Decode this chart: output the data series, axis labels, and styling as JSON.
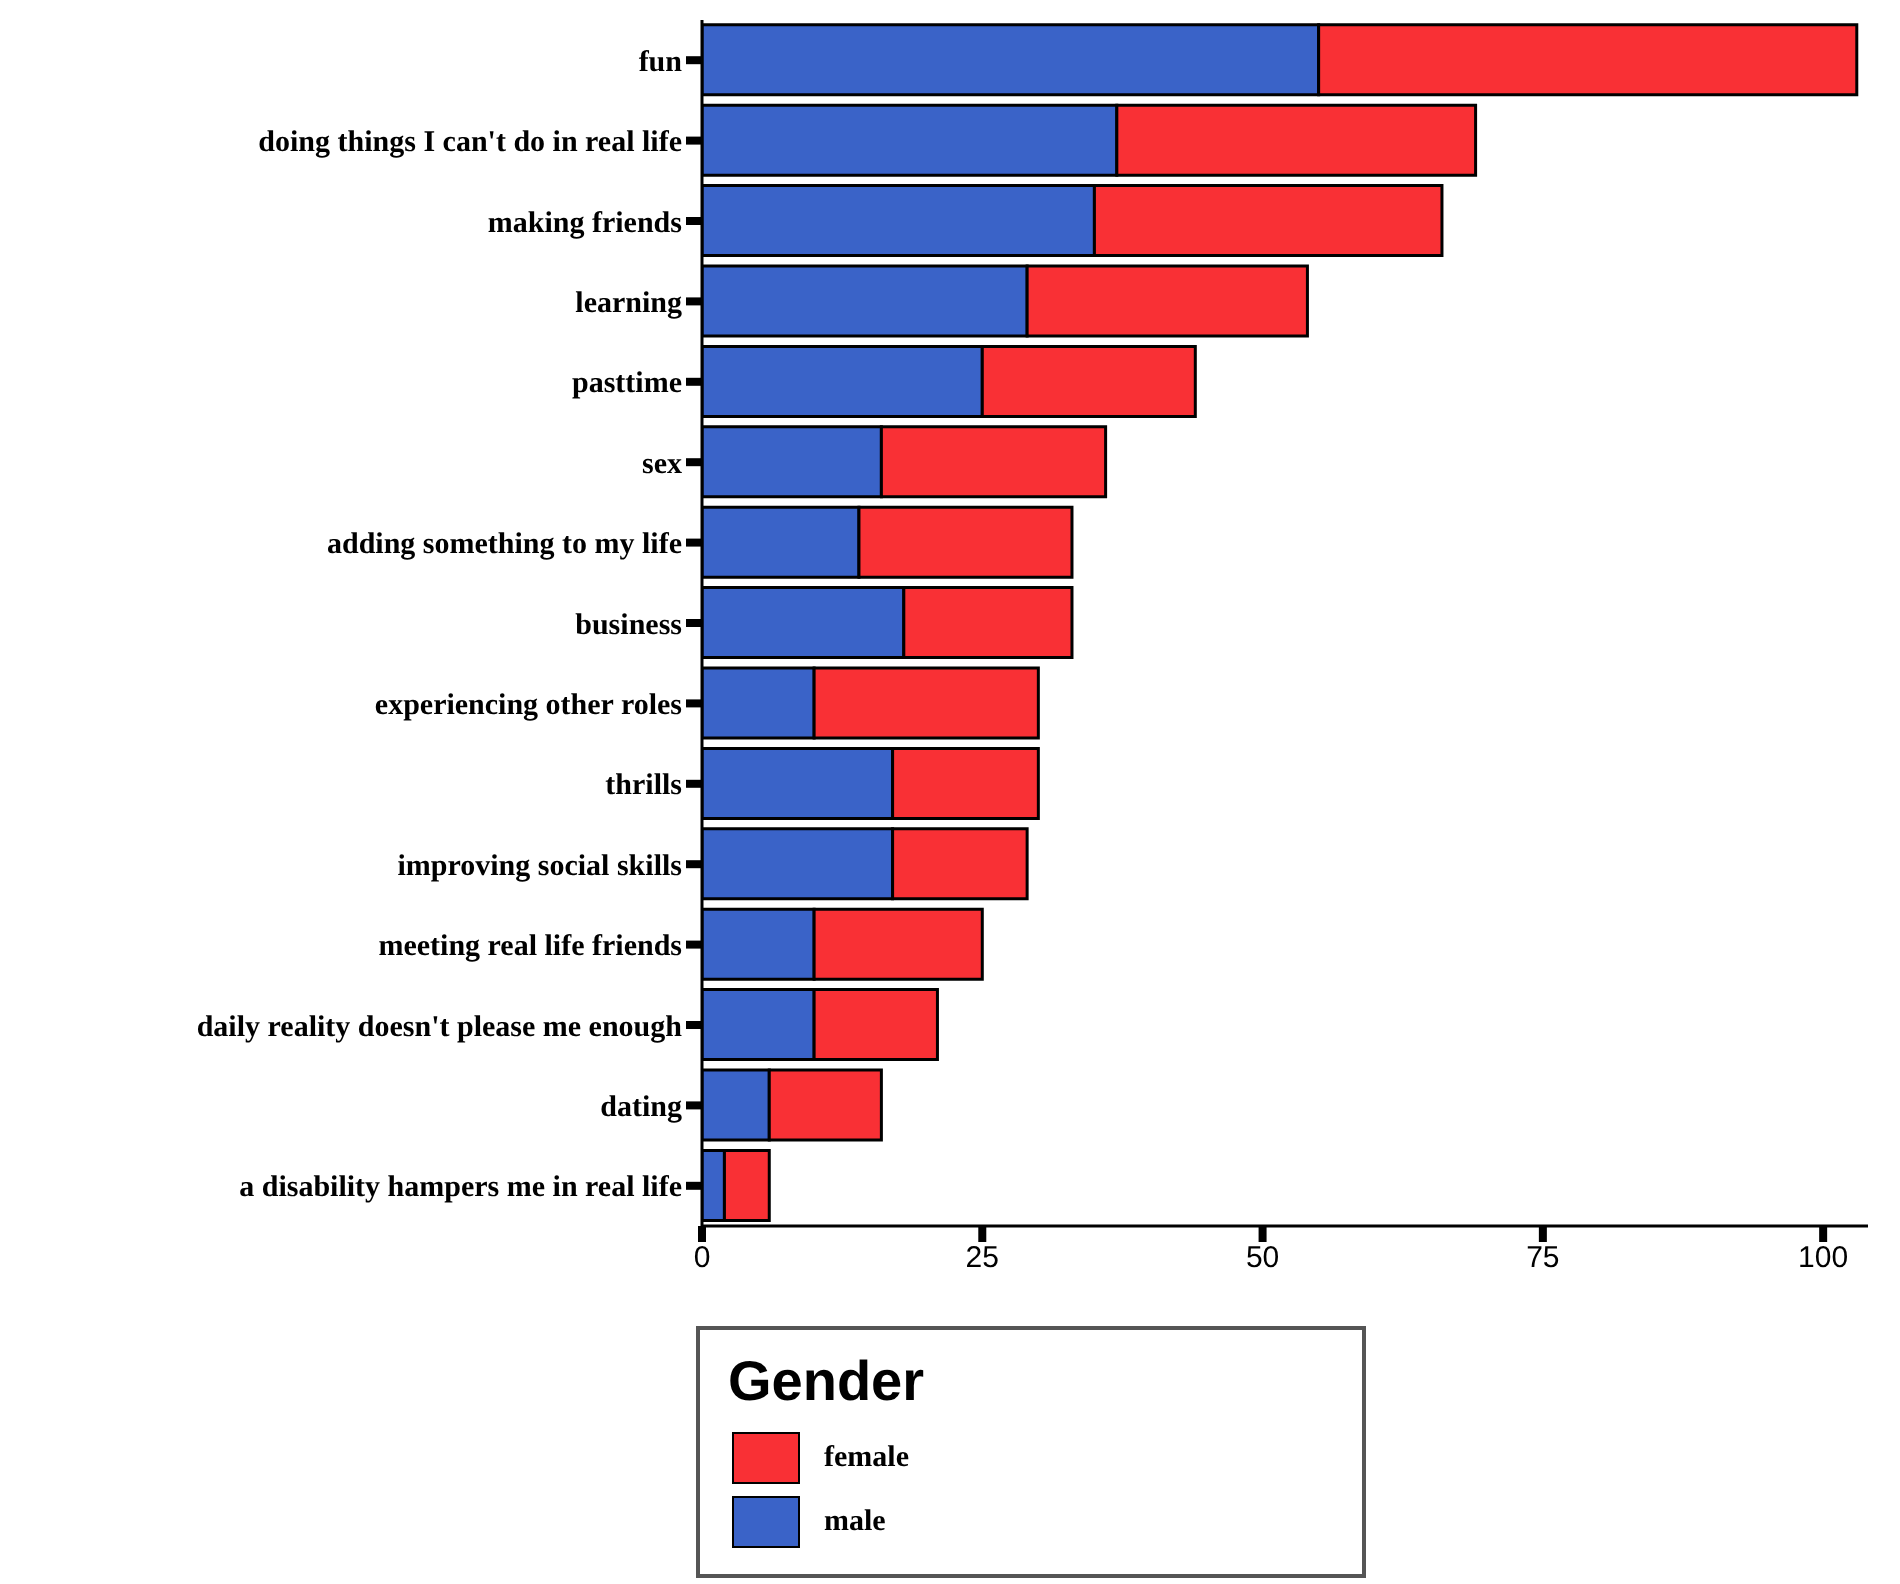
{
  "chart_data": {
    "type": "bar",
    "orientation": "horizontal",
    "stacked": true,
    "categories": [
      "fun",
      "doing things I can't do in real life",
      "making friends",
      "learning",
      "pasttime",
      "sex",
      "adding something to my life",
      "business",
      "experiencing other roles",
      "thrills",
      "improving social skills",
      "meeting real life friends",
      "daily reality doesn't please me enough",
      "dating",
      "a disability hampers me in real life"
    ],
    "series": [
      {
        "name": "male",
        "color": "#3a63c8",
        "values": [
          55,
          37,
          35,
          29,
          25,
          16,
          14,
          18,
          10,
          17,
          17,
          10,
          10,
          6,
          2
        ]
      },
      {
        "name": "female",
        "color": "#f93035",
        "values": [
          48,
          32,
          31,
          25,
          19,
          20,
          19,
          15,
          20,
          13,
          12,
          15,
          11,
          10,
          4
        ]
      }
    ],
    "xlim": [
      0,
      104
    ],
    "xticks": [
      0,
      25,
      50,
      75,
      100
    ],
    "legend_title": "Gender",
    "legend": "bottom",
    "grid": false
  }
}
